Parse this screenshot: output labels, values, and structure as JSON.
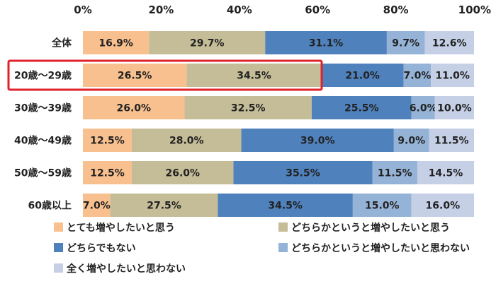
{
  "chart_data": {
    "type": "bar",
    "orientation": "horizontal",
    "stacked": true,
    "percent_stacked": true,
    "xlim": [
      0,
      100
    ],
    "x_ticks": [
      "0%",
      "20%",
      "40%",
      "60%",
      "80%",
      "100%"
    ],
    "categories": [
      "全体",
      "20歳～29歳",
      "30歳～39歳",
      "40歳～49歳",
      "50歳～59歳",
      "60歳以上"
    ],
    "highlighted_category": "20歳～29歳",
    "series": [
      {
        "name": "とても増やしたいと思う",
        "color": "#f9c08f",
        "values": [
          16.9,
          26.5,
          26.0,
          12.5,
          12.5,
          7.0
        ],
        "labels": [
          "16.9%",
          "26.5%",
          "26.0%",
          "12.5%",
          "12.5%",
          "7.0%"
        ]
      },
      {
        "name": "どちらかというと増やしたいと思う",
        "color": "#c4bd97",
        "values": [
          29.7,
          34.5,
          32.5,
          28.0,
          26.0,
          27.5
        ],
        "labels": [
          "29.7%",
          "34.5%",
          "32.5%",
          "28.0%",
          "26.0%",
          "27.5%"
        ]
      },
      {
        "name": "どちらでもない",
        "color": "#4f81bd",
        "values": [
          31.1,
          21.0,
          25.5,
          39.0,
          35.5,
          34.5
        ],
        "labels": [
          "31.1%",
          "21.0%",
          "25.5%",
          "39.0%",
          "35.5%",
          "34.5%"
        ]
      },
      {
        "name": "どちらかというと増やしたいと思わない",
        "color": "#95b3d7",
        "values": [
          9.7,
          7.0,
          6.0,
          9.0,
          11.5,
          15.0
        ],
        "labels": [
          "9.7%",
          "7.0%",
          "6.0%",
          "9.0%",
          "11.5%",
          "15.0%"
        ]
      },
      {
        "name": "全く増やしたいと思わない",
        "color": "#c5d0e6",
        "values": [
          12.6,
          11.0,
          10.0,
          11.5,
          14.5,
          16.0
        ],
        "labels": [
          "12.6%",
          "11.0%",
          "10.0%",
          "11.5%",
          "14.5%",
          "16.0%"
        ]
      }
    ],
    "legend_position": "bottom",
    "grid": false
  }
}
